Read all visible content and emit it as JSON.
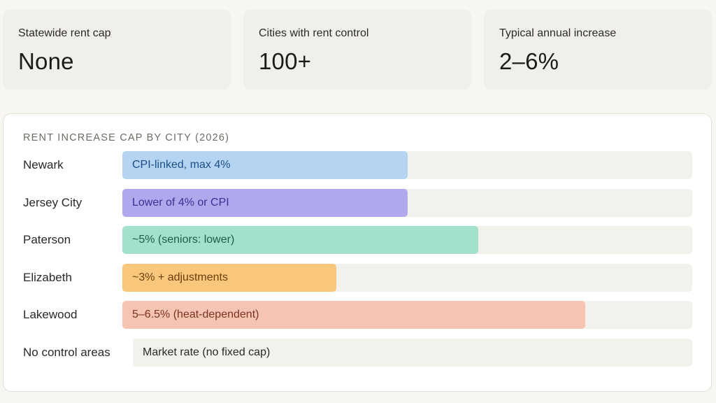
{
  "stats": [
    {
      "label": "Statewide rent cap",
      "value": "None"
    },
    {
      "label": "Cities with rent control",
      "value": "100+"
    },
    {
      "label": "Typical annual increase",
      "value": "2–6%"
    }
  ],
  "chart_data": {
    "type": "bar",
    "orientation": "horizontal",
    "title": "RENT INCREASE CAP BY CITY (2026)",
    "xlabel": "",
    "ylabel": "",
    "xlim": [
      0,
      8
    ],
    "categories": [
      "Newark",
      "Jersey City",
      "Paterson",
      "Elizabeth",
      "Lakewood",
      "No control areas"
    ],
    "values": [
      4,
      4,
      5,
      3,
      6.5,
      null
    ],
    "labels": [
      "CPI-linked, max 4%",
      "Lower of 4% or CPI",
      "~5% (seniors: lower)",
      "~3% + adjustments",
      "5–6.5% (heat-dependent)",
      "Market rate (no fixed cap)"
    ],
    "colors": [
      "#b4d4f2",
      "#b0a8ec",
      "#a4e1cb",
      "#f9c77c",
      "#f5c4b2",
      "#f3f1eb"
    ],
    "text_colors": [
      "#1c4f86",
      "#3d3096",
      "#195f47",
      "#6a3f0b",
      "#7c3320",
      "#2a2926"
    ]
  }
}
